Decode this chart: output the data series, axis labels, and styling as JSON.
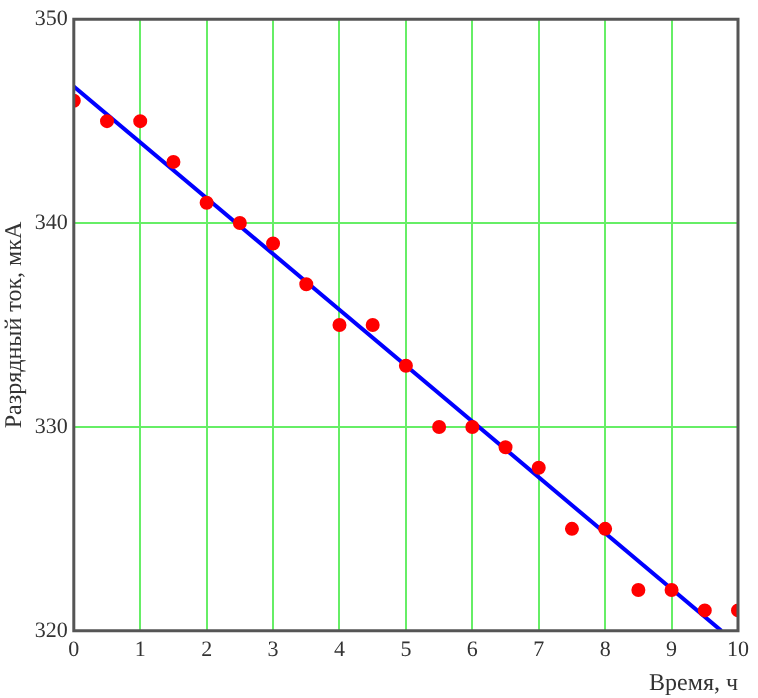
{
  "chart_data": {
    "type": "scatter",
    "xlabel": "Время, ч",
    "ylabel": "Разрядный ток, мкА",
    "x": [
      0,
      0.5,
      1,
      1.5,
      2,
      2.5,
      3,
      3.5,
      4,
      4.5,
      5,
      5.5,
      6,
      6.5,
      7,
      7.5,
      8,
      8.5,
      9,
      9.5,
      10
    ],
    "series": [
      {
        "color": "#ff0000",
        "marker": "circle",
        "values": [
          346,
          345,
          345,
          343,
          341,
          340,
          339,
          337,
          335,
          335,
          333,
          330,
          330,
          329,
          328,
          325,
          325,
          322,
          322,
          321,
          321
        ]
      },
      {
        "type": "line",
        "color": "#0000ff",
        "x": [
          0,
          9.75
        ],
        "values": [
          346.7,
          320
        ],
        "marker": "none"
      }
    ],
    "xlim": [
      0,
      10
    ],
    "ylim": [
      320,
      350
    ],
    "xticks": [
      0,
      1,
      2,
      3,
      4,
      5,
      6,
      7,
      8,
      9,
      10
    ],
    "yticks": [
      320,
      330,
      340,
      350
    ],
    "grid": true,
    "legend": false
  }
}
